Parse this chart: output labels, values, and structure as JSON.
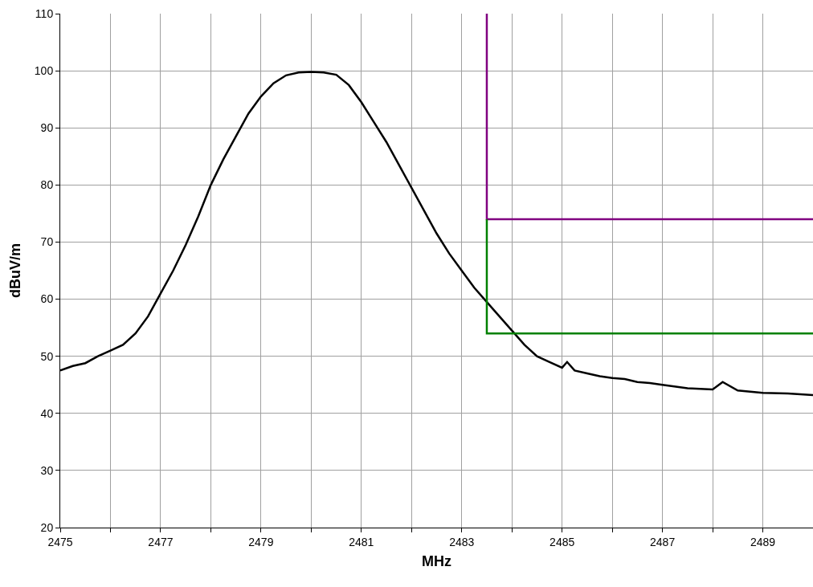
{
  "chart_data": {
    "type": "line",
    "xlabel": "MHz",
    "ylabel": "dBuV/m",
    "xlim": [
      2475,
      2490
    ],
    "ylim": [
      20,
      110
    ],
    "xticks": [
      2475,
      {
        "value": 2476,
        "label": null
      },
      2477,
      {
        "value": 2478,
        "label": null
      },
      2479,
      {
        "value": 2480,
        "label": null
      },
      2481,
      {
        "value": 2482,
        "label": null
      },
      2483,
      {
        "value": 2484,
        "label": null
      },
      2485,
      {
        "value": 2486,
        "label": null
      },
      2487,
      {
        "value": 2488,
        "label": null
      },
      2489,
      {
        "value": 2490,
        "label": null
      }
    ],
    "yticks": [
      20,
      30,
      40,
      50,
      60,
      70,
      80,
      90,
      100,
      110
    ],
    "grid": true,
    "marker": "none",
    "line_style": "solid",
    "series": [
      {
        "color": "#000000",
        "x": [
          2475,
          2475.25,
          2475.5,
          2475.75,
          2476,
          2476.25,
          2476.5,
          2476.75,
          2477,
          2477.25,
          2477.5,
          2477.75,
          2478,
          2478.25,
          2478.5,
          2478.75,
          2479,
          2479.25,
          2479.5,
          2479.75,
          2480,
          2480.25,
          2480.5,
          2480.75,
          2481,
          2481.25,
          2481.5,
          2481.75,
          2482,
          2482.25,
          2482.5,
          2482.75,
          2483,
          2483.25,
          2483.5,
          2483.75,
          2484,
          2484.25,
          2484.5,
          2484.75,
          2485,
          2485.1,
          2485.25,
          2485.5,
          2485.75,
          2486,
          2486.25,
          2486.5,
          2486.75,
          2487,
          2487.5,
          2488,
          2488.2,
          2488.5,
          2489,
          2489.5,
          2490
        ],
        "values": [
          47.5,
          48.3,
          48.8,
          50,
          51,
          52,
          54,
          57,
          61,
          65,
          69.5,
          74.5,
          80,
          84.5,
          88.5,
          92.5,
          95.5,
          97.8,
          99.2,
          99.7,
          99.8,
          99.7,
          99.3,
          97.5,
          94.5,
          91,
          87.5,
          83.5,
          79.5,
          75.5,
          71.5,
          68,
          65,
          62,
          59.5,
          57,
          54.5,
          52,
          50,
          49,
          48,
          49,
          47.5,
          47,
          46.5,
          46.2,
          46,
          45.5,
          45.3,
          45,
          44.4,
          44.2,
          45.5,
          44,
          43.6,
          43.5,
          43.2
        ]
      },
      {
        "color": "#800080",
        "x": [
          2483.5,
          2483.5,
          2490
        ],
        "values": [
          110,
          74,
          74
        ]
      },
      {
        "color": "#008000",
        "x": [
          2483.5,
          2483.5,
          2490
        ],
        "values": [
          74,
          54,
          54
        ]
      }
    ]
  }
}
